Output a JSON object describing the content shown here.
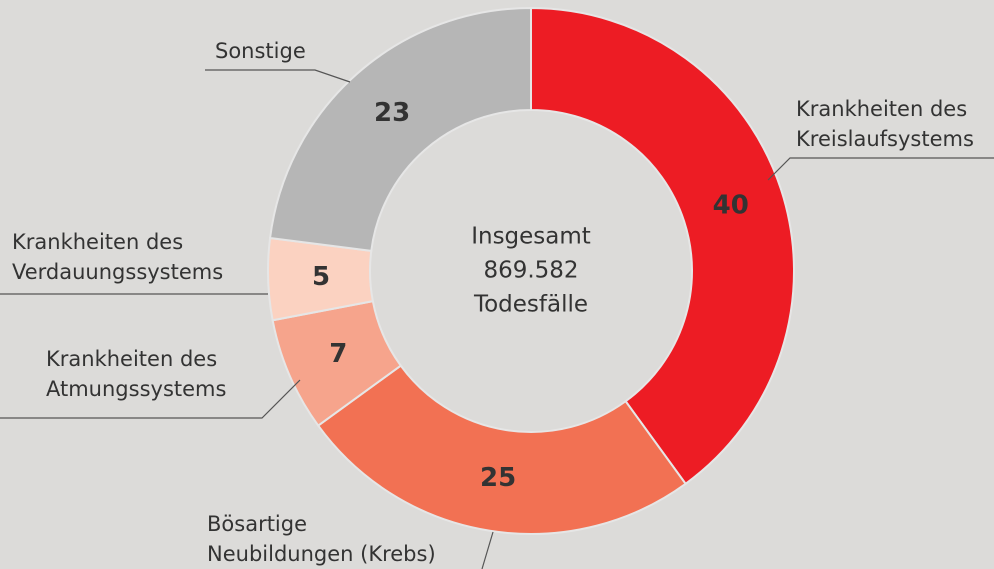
{
  "chart_data": {
    "type": "donut",
    "categories": [
      [
        "Krankheiten des",
        "Kreislaufsystems"
      ],
      [
        "Bösartige",
        "Neubildungen (Krebs)"
      ],
      [
        "Krankheiten des",
        "Atmungssystems"
      ],
      [
        "Krankheiten des",
        "Verdauungssystems"
      ],
      [
        "Sonstige"
      ]
    ],
    "values": [
      40,
      25,
      7,
      5,
      23
    ],
    "colors": [
      "#ed1c24",
      "#f27153",
      "#f6a48c",
      "#fbd2c1",
      "#b6b6b6"
    ],
    "center_text": [
      "Insgesamt",
      "869.582",
      "Todesfälle"
    ]
  }
}
